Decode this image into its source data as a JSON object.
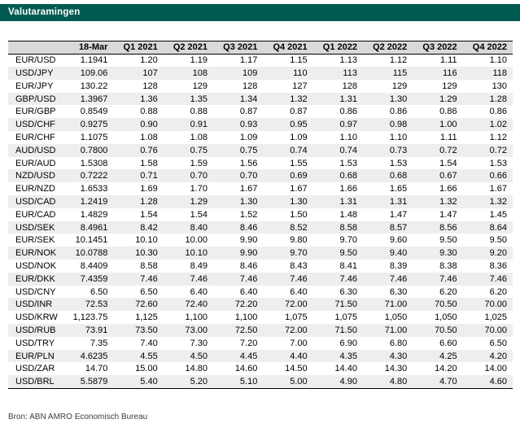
{
  "header": {
    "title": "Valutaramingen"
  },
  "colors": {
    "title_bar_bg": "#005b52",
    "title_text": "#ffffff",
    "header_row_bg": "#d9d9d9",
    "alt_row_bg": "#eeeeee",
    "table_border": "#000000"
  },
  "chart_data": {
    "type": "table",
    "title": "Valutaramingen",
    "columns": [
      "",
      "18-Mar",
      "Q1 2021",
      "Q2 2021",
      "Q3 2021",
      "Q4 2021",
      "Q1 2022",
      "Q2 2022",
      "Q3 2022",
      "Q4 2022"
    ],
    "rows": [
      {
        "pair": "EUR/USD",
        "values": [
          "1.1941",
          "1.20",
          "1.19",
          "1.17",
          "1.15",
          "1.13",
          "1.12",
          "1.11",
          "1.10"
        ]
      },
      {
        "pair": "USD/JPY",
        "values": [
          "109.06",
          "107",
          "108",
          "109",
          "110",
          "113",
          "115",
          "116",
          "118"
        ]
      },
      {
        "pair": "EUR/JPY",
        "values": [
          "130.22",
          "128",
          "129",
          "128",
          "127",
          "128",
          "129",
          "129",
          "130"
        ]
      },
      {
        "pair": "GBP/USD",
        "values": [
          "1.3967",
          "1.36",
          "1.35",
          "1.34",
          "1.32",
          "1.31",
          "1.30",
          "1.29",
          "1.28"
        ]
      },
      {
        "pair": "EUR/GBP",
        "values": [
          "0.8549",
          "0.88",
          "0.88",
          "0.87",
          "0.87",
          "0.86",
          "0.86",
          "0.86",
          "0.86"
        ]
      },
      {
        "pair": "USD/CHF",
        "values": [
          "0.9275",
          "0.90",
          "0.91",
          "0.93",
          "0.95",
          "0.97",
          "0.98",
          "1.00",
          "1.02"
        ]
      },
      {
        "pair": "EUR/CHF",
        "values": [
          "1.1075",
          "1.08",
          "1.08",
          "1.09",
          "1.09",
          "1.10",
          "1.10",
          "1.11",
          "1.12"
        ]
      },
      {
        "pair": "AUD/USD",
        "values": [
          "0.7800",
          "0.76",
          "0.75",
          "0.75",
          "0.74",
          "0.74",
          "0.73",
          "0.72",
          "0.72"
        ]
      },
      {
        "pair": "EUR/AUD",
        "values": [
          "1.5308",
          "1.58",
          "1.59",
          "1.56",
          "1.55",
          "1.53",
          "1.53",
          "1.54",
          "1.53"
        ]
      },
      {
        "pair": "NZD/USD",
        "values": [
          "0.7222",
          "0.71",
          "0.70",
          "0.70",
          "0.69",
          "0.68",
          "0.68",
          "0.67",
          "0.66"
        ]
      },
      {
        "pair": "EUR/NZD",
        "values": [
          "1.6533",
          "1.69",
          "1.70",
          "1.67",
          "1.67",
          "1.66",
          "1.65",
          "1.66",
          "1.67"
        ]
      },
      {
        "pair": "USD/CAD",
        "values": [
          "1.2419",
          "1.28",
          "1.29",
          "1.30",
          "1.30",
          "1.31",
          "1.31",
          "1.32",
          "1.32"
        ]
      },
      {
        "pair": "EUR/CAD",
        "values": [
          "1.4829",
          "1.54",
          "1.54",
          "1.52",
          "1.50",
          "1.48",
          "1.47",
          "1.47",
          "1.45"
        ]
      },
      {
        "pair": "USD/SEK",
        "values": [
          "8.4961",
          "8.42",
          "8.40",
          "8.46",
          "8.52",
          "8.58",
          "8.57",
          "8.56",
          "8.64"
        ]
      },
      {
        "pair": "EUR/SEK",
        "values": [
          "10.1451",
          "10.10",
          "10.00",
          "9.90",
          "9.80",
          "9.70",
          "9.60",
          "9.50",
          "9.50"
        ]
      },
      {
        "pair": "EUR/NOK",
        "values": [
          "10.0788",
          "10.30",
          "10.10",
          "9.90",
          "9.70",
          "9.50",
          "9.40",
          "9.30",
          "9.20"
        ]
      },
      {
        "pair": "USD/NOK",
        "values": [
          "8.4409",
          "8.58",
          "8.49",
          "8.46",
          "8.43",
          "8.41",
          "8.39",
          "8.38",
          "8.36"
        ]
      },
      {
        "pair": "EUR/DKK",
        "values": [
          "7.4359",
          "7.46",
          "7.46",
          "7.46",
          "7.46",
          "7.46",
          "7.46",
          "7.46",
          "7.46"
        ]
      },
      {
        "pair": "USD/CNY",
        "values": [
          "6.50",
          "6.50",
          "6.40",
          "6.40",
          "6.40",
          "6.30",
          "6.30",
          "6.20",
          "6.20"
        ]
      },
      {
        "pair": "USD/INR",
        "values": [
          "72.53",
          "72.60",
          "72.40",
          "72.20",
          "72.00",
          "71.50",
          "71.00",
          "70.50",
          "70.00"
        ]
      },
      {
        "pair": "USD/KRW",
        "values": [
          "1,123.75",
          "1,125",
          "1,100",
          "1,100",
          "1,075",
          "1,075",
          "1,050",
          "1,050",
          "1,025"
        ]
      },
      {
        "pair": "USD/RUB",
        "values": [
          "73.91",
          "73.50",
          "73.00",
          "72.50",
          "72.00",
          "71.50",
          "71.00",
          "70.50",
          "70.00"
        ]
      },
      {
        "pair": "USD/TRY",
        "values": [
          "7.35",
          "7.40",
          "7.30",
          "7.20",
          "7.00",
          "6.90",
          "6.80",
          "6.60",
          "6.50"
        ]
      },
      {
        "pair": "EUR/PLN",
        "values": [
          "4.6235",
          "4.55",
          "4.50",
          "4.45",
          "4.40",
          "4.35",
          "4.30",
          "4.25",
          "4.20"
        ]
      },
      {
        "pair": "USD/ZAR",
        "values": [
          "14.70",
          "15.00",
          "14.80",
          "14.60",
          "14.50",
          "14.40",
          "14.30",
          "14.20",
          "14.00"
        ]
      },
      {
        "pair": "USD/BRL",
        "values": [
          "5.5879",
          "5.40",
          "5.20",
          "5.10",
          "5.00",
          "4.90",
          "4.80",
          "4.70",
          "4.60"
        ]
      }
    ],
    "source": "Bron: ABN AMRO Economisch Bureau"
  },
  "footer": {
    "source": "Bron: ABN AMRO Economisch Bureau"
  }
}
